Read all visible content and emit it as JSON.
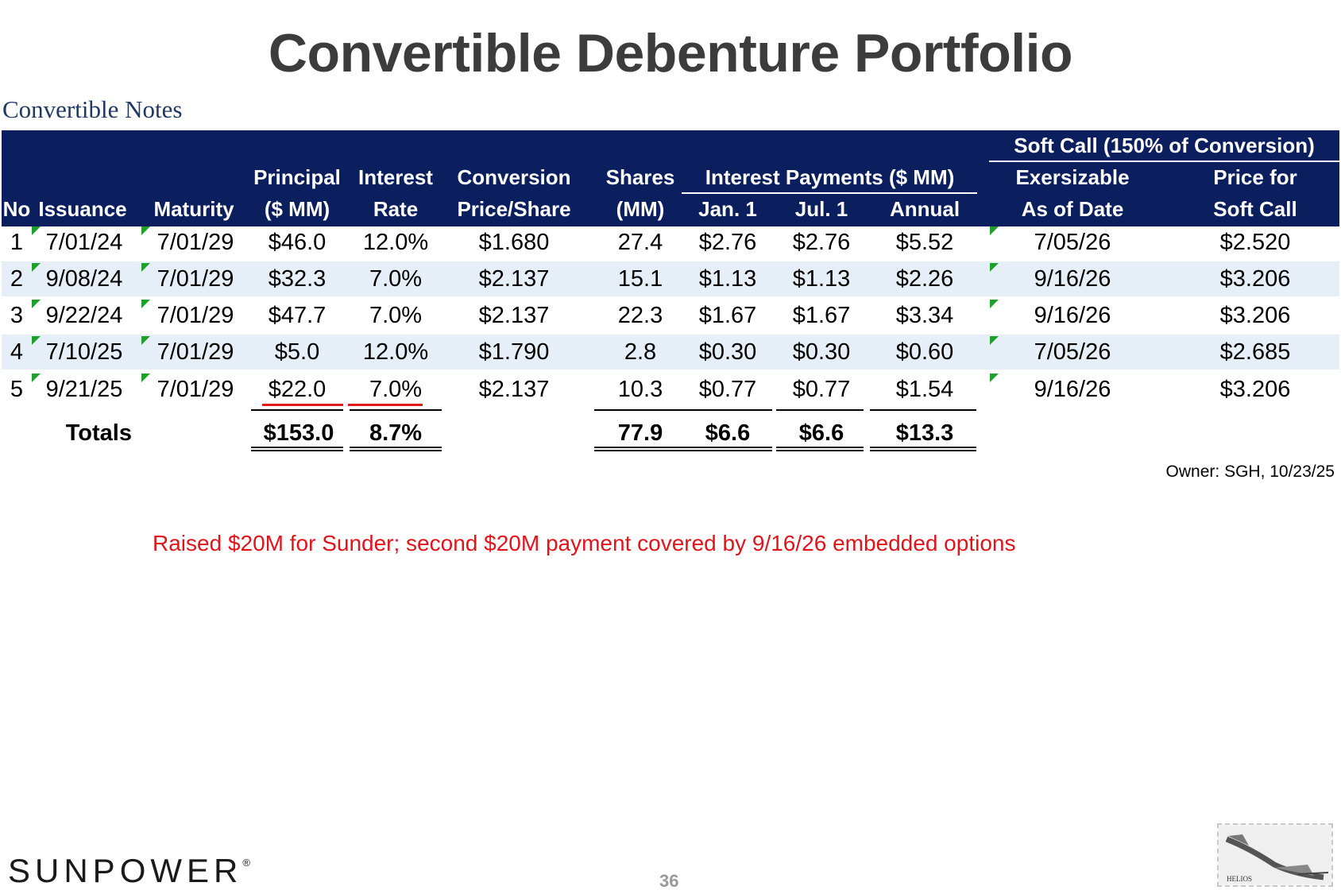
{
  "title": "Convertible Debenture Portfolio",
  "subtitle": "Convertible Notes",
  "headers": {
    "soft_call_group": "Soft Call (150% of Conversion)",
    "interest_group": "Interest Payments ($ MM)",
    "no": "No",
    "issuance": "Issuance",
    "maturity": "Maturity",
    "principal_1": "Principal",
    "principal_2": "($ MM)",
    "interest_1": "Interest",
    "interest_2": "Rate",
    "conversion_1": "Conversion",
    "conversion_2": "Price/Share",
    "shares_1": "Shares",
    "shares_2": "(MM)",
    "jan": "Jan. 1",
    "jul": "Jul. 1",
    "annual": "Annual",
    "exersizable_1": "Exersizable",
    "exersizable_2": "As of Date",
    "price_1": "Price for",
    "price_2": "Soft Call"
  },
  "rows": [
    {
      "no": "1",
      "issuance": "7/01/24",
      "maturity": "7/01/29",
      "principal": "$46.0",
      "rate": "12.0%",
      "conversion": "$1.680",
      "shares": "27.4",
      "jan": "$2.76",
      "jul": "$2.76",
      "annual": "$5.52",
      "exersizable": "7/05/26",
      "softcall": "$2.520"
    },
    {
      "no": "2",
      "issuance": "9/08/24",
      "maturity": "7/01/29",
      "principal": "$32.3",
      "rate": "7.0%",
      "conversion": "$2.137",
      "shares": "15.1",
      "jan": "$1.13",
      "jul": "$1.13",
      "annual": "$2.26",
      "exersizable": "9/16/26",
      "softcall": "$3.206"
    },
    {
      "no": "3",
      "issuance": "9/22/24",
      "maturity": "7/01/29",
      "principal": "$47.7",
      "rate": "7.0%",
      "conversion": "$2.137",
      "shares": "22.3",
      "jan": "$1.67",
      "jul": "$1.67",
      "annual": "$3.34",
      "exersizable": "9/16/26",
      "softcall": "$3.206"
    },
    {
      "no": "4",
      "issuance": "7/10/25",
      "maturity": "7/01/29",
      "principal": "$5.0",
      "rate": "12.0%",
      "conversion": "$1.790",
      "shares": "2.8",
      "jan": "$0.30",
      "jul": "$0.30",
      "annual": "$0.60",
      "exersizable": "7/05/26",
      "softcall": "$2.685"
    },
    {
      "no": "5",
      "issuance": "9/21/25",
      "maturity": "7/01/29",
      "principal": "$22.0",
      "rate": "7.0%",
      "conversion": "$2.137",
      "shares": "10.3",
      "jan": "$0.77",
      "jul": "$0.77",
      "annual": "$1.54",
      "exersizable": "9/16/26",
      "softcall": "$3.206"
    }
  ],
  "totals": {
    "label": "Totals",
    "principal": "$153.0",
    "rate": "8.7%",
    "shares": "77.9",
    "jan": "$6.6",
    "jul": "$6.6",
    "annual": "$13.3"
  },
  "owner": "Owner: SGH, 10/23/25",
  "note": "Raised $20M for Sunder; second $20M payment covered by 9/16/26 embedded options",
  "logo": {
    "text_before": "SUNP",
    "o": "O",
    "text_after": "WER",
    "registered": "®"
  },
  "page_number": "36",
  "stamp_label": "HELIOS",
  "colors": {
    "header_bg": "#0b1f5e",
    "alt_row": "#e6eef8",
    "note": "#e0141b",
    "title": "#3c3c3c",
    "subtitle": "#1f3864",
    "indicator": "#1fa02a"
  }
}
